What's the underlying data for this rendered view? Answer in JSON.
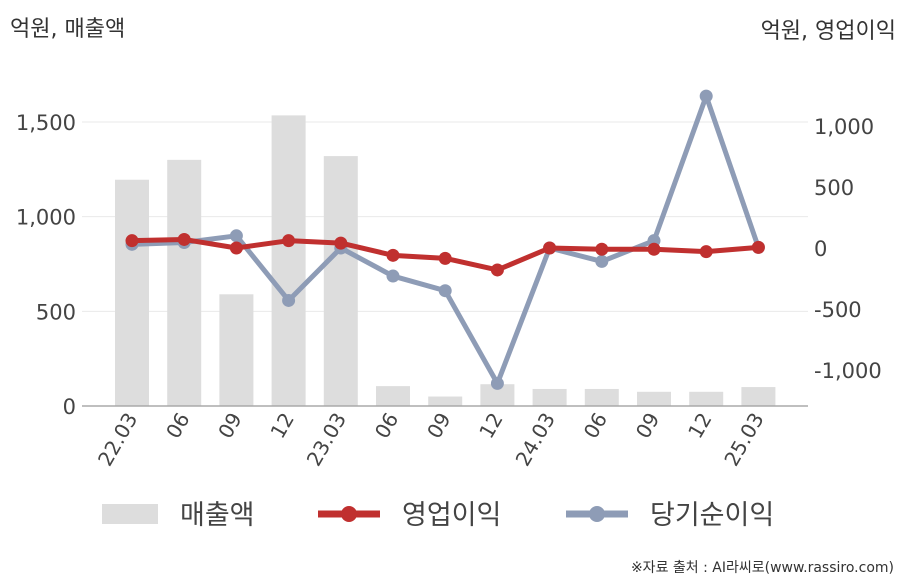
{
  "chart_data": {
    "type": "bar+line",
    "left_axis_label": "억원, 매출액",
    "right_axis_label": "억원, 영업이익",
    "categories": [
      "22.03",
      "06",
      "09",
      "12",
      "23.03",
      "06",
      "09",
      "12",
      "24.03",
      "06",
      "09",
      "12",
      "25.03"
    ],
    "left_axis": {
      "ylim": [
        0,
        1700
      ],
      "ticks": [
        "0",
        "500",
        "1,000",
        "1,500"
      ],
      "tick_values": [
        0,
        500,
        1000,
        1500
      ]
    },
    "right_axis": {
      "ylim": [
        -1500,
        1250
      ],
      "ticks": [
        "-1,000",
        "-500",
        "0",
        "500",
        "1,000"
      ],
      "tick_values": [
        -1000,
        -500,
        0,
        500,
        1000
      ]
    },
    "series": [
      {
        "name": "매출액",
        "type": "bar",
        "axis": "left",
        "color": "#dddddd",
        "values": [
          1195,
          1300,
          590,
          1535,
          1320,
          105,
          50,
          115,
          90,
          90,
          75,
          75,
          100
        ]
      },
      {
        "name": "영업이익",
        "type": "line",
        "axis": "right",
        "color": "#c0302f",
        "values": [
          60,
          70,
          0,
          60,
          40,
          -60,
          -85,
          -180,
          0,
          -10,
          -10,
          -30,
          5
        ]
      },
      {
        "name": "당기순이익",
        "type": "line",
        "axis": "right",
        "color": "#8e9cb6",
        "values": [
          30,
          45,
          100,
          -430,
          0,
          -230,
          -350,
          -1110,
          0,
          -110,
          60,
          1245,
          5
        ]
      }
    ],
    "grid": true,
    "legend_position": "bottom"
  },
  "source_text": "※자료 출처 : AI라씨로(www.rassiro.com)"
}
